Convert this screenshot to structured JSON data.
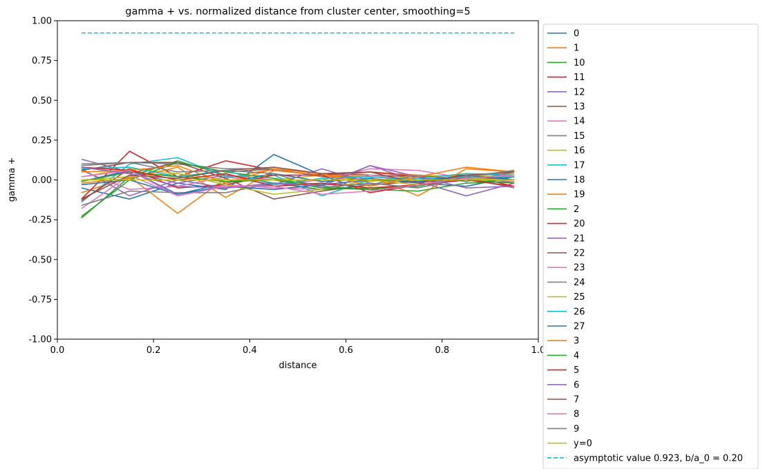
{
  "chart_data": {
    "type": "line",
    "title": "gamma + vs. normalized distance from cluster center, smoothing=5",
    "xlabel": "distance",
    "ylabel": "gamma +",
    "xlim": [
      0.0,
      1.0
    ],
    "ylim": [
      -1.0,
      1.0
    ],
    "xticks": [
      "0.0",
      "0.2",
      "0.4",
      "0.6",
      "0.8",
      "1.0"
    ],
    "yticks": [
      "1.00",
      "0.75",
      "0.50",
      "0.25",
      "0.00",
      "-0.25",
      "-0.50",
      "-0.75",
      "-1.00"
    ],
    "grid": false,
    "legend_placement": "outside-right",
    "x": [
      0.05,
      0.15,
      0.25,
      0.35,
      0.45,
      0.55,
      0.65,
      0.75,
      0.85,
      0.95
    ],
    "series": [
      {
        "name": "0",
        "color": "#1f77b4",
        "values": [
          -0.05,
          -0.12,
          -0.02,
          -0.06,
          0.16,
          0.03,
          0.0,
          0.01,
          0.0,
          0.02
        ]
      },
      {
        "name": "1",
        "color": "#ff7f0e",
        "values": [
          -0.08,
          0.02,
          -0.21,
          0.01,
          0.07,
          0.02,
          0.05,
          0.03,
          0.02,
          0.05
        ]
      },
      {
        "name": "10",
        "color": "#2ca02c",
        "values": [
          -0.24,
          0.02,
          0.12,
          0.03,
          -0.02,
          -0.06,
          -0.05,
          -0.04,
          0.03,
          0.0
        ]
      },
      {
        "name": "11",
        "color": "#d62728",
        "values": [
          -0.12,
          0.18,
          0.02,
          0.12,
          0.06,
          0.03,
          0.05,
          0.02,
          0.03,
          -0.04
        ]
      },
      {
        "name": "12",
        "color": "#9467bd",
        "values": [
          0.13,
          0.05,
          -0.02,
          0.03,
          0.0,
          -0.03,
          0.09,
          -0.01,
          -0.1,
          -0.02
        ]
      },
      {
        "name": "13",
        "color": "#8c564b",
        "values": [
          0.08,
          0.04,
          0.11,
          0.05,
          0.07,
          0.04,
          0.03,
          0.02,
          0.01,
          0.03
        ]
      },
      {
        "name": "14",
        "color": "#e377c2",
        "values": [
          0.06,
          -0.06,
          -0.04,
          0.02,
          -0.03,
          0.0,
          0.07,
          0.06,
          0.01,
          0.03
        ]
      },
      {
        "name": "15",
        "color": "#7f7f7f",
        "values": [
          0.09,
          0.11,
          0.1,
          0.07,
          0.07,
          0.02,
          0.02,
          0.0,
          0.01,
          0.06
        ]
      },
      {
        "name": "16",
        "color": "#bcbd22",
        "values": [
          0.02,
          0.07,
          0.04,
          0.0,
          0.0,
          0.03,
          -0.01,
          0.03,
          0.02,
          0.04
        ]
      },
      {
        "name": "17",
        "color": "#17becf",
        "values": [
          -0.14,
          0.1,
          0.14,
          0.02,
          0.03,
          -0.1,
          0.0,
          0.01,
          0.04,
          0.03
        ]
      },
      {
        "name": "18",
        "color": "#1f77b4",
        "values": [
          -0.01,
          0.06,
          -0.09,
          -0.02,
          0.04,
          -0.01,
          0.01,
          -0.02,
          -0.04,
          0.02
        ]
      },
      {
        "name": "19",
        "color": "#ff7f0e",
        "values": [
          -0.02,
          0.01,
          0.08,
          -0.11,
          0.06,
          0.03,
          0.02,
          -0.1,
          0.07,
          0.05
        ]
      },
      {
        "name": "2",
        "color": "#2ca02c",
        "values": [
          -0.23,
          0.0,
          0.11,
          0.05,
          0.01,
          -0.04,
          -0.06,
          -0.07,
          -0.02,
          -0.01
        ]
      },
      {
        "name": "20",
        "color": "#d62728",
        "values": [
          -0.13,
          0.07,
          -0.05,
          -0.03,
          0.03,
          0.03,
          -0.08,
          -0.03,
          0.02,
          0.0
        ]
      },
      {
        "name": "21",
        "color": "#9467bd",
        "values": [
          0.07,
          -0.1,
          0.0,
          -0.05,
          -0.03,
          0.07,
          -0.02,
          -0.05,
          0.01,
          -0.05
        ]
      },
      {
        "name": "22",
        "color": "#8c564b",
        "values": [
          0.06,
          0.11,
          0.11,
          0.01,
          -0.12,
          -0.07,
          -0.03,
          -0.01,
          0.0,
          0.02
        ]
      },
      {
        "name": "23",
        "color": "#e377c2",
        "values": [
          -0.18,
          0.03,
          -0.1,
          -0.03,
          -0.05,
          -0.06,
          0.03,
          0.0,
          0.01,
          -0.01
        ]
      },
      {
        "name": "24",
        "color": "#7f7f7f",
        "values": [
          -0.16,
          -0.07,
          -0.08,
          -0.08,
          -0.02,
          -0.03,
          -0.03,
          0.03,
          -0.01,
          0.05
        ]
      },
      {
        "name": "25",
        "color": "#bcbd22",
        "values": [
          0.0,
          0.02,
          0.04,
          -0.03,
          -0.09,
          -0.06,
          0.0,
          -0.03,
          0.01,
          0.0
        ]
      },
      {
        "name": "26",
        "color": "#17becf",
        "values": [
          0.07,
          0.08,
          0.02,
          0.06,
          -0.03,
          0.01,
          0.02,
          0.0,
          0.02,
          0.02
        ]
      },
      {
        "name": "27",
        "color": "#1f77b4",
        "values": [
          -0.03,
          0.0,
          -0.09,
          -0.04,
          -0.06,
          -0.03,
          0.0,
          -0.01,
          0.03,
          0.0
        ]
      },
      {
        "name": "3",
        "color": "#ff7f0e",
        "values": [
          0.05,
          0.06,
          0.09,
          -0.02,
          0.07,
          0.04,
          -0.04,
          0.02,
          0.08,
          0.05
        ]
      },
      {
        "name": "4",
        "color": "#2ca02c",
        "values": [
          -0.01,
          0.05,
          0.02,
          -0.01,
          0.0,
          -0.05,
          -0.06,
          -0.03,
          0.0,
          -0.02
        ]
      },
      {
        "name": "5",
        "color": "#d62728",
        "values": [
          0.08,
          0.06,
          0.0,
          0.04,
          -0.04,
          -0.02,
          -0.05,
          -0.03,
          0.0,
          -0.04
        ]
      },
      {
        "name": "6",
        "color": "#9467bd",
        "values": [
          0.08,
          0.04,
          -0.04,
          -0.05,
          -0.02,
          -0.04,
          0.09,
          0.02,
          -0.05,
          -0.04
        ]
      },
      {
        "name": "7",
        "color": "#8c564b",
        "values": [
          -0.12,
          0.03,
          0.01,
          0.06,
          0.08,
          0.04,
          0.05,
          -0.02,
          0.03,
          0.05
        ]
      },
      {
        "name": "8",
        "color": "#e377c2",
        "values": [
          0.02,
          0.06,
          -0.1,
          -0.04,
          -0.04,
          -0.09,
          -0.07,
          -0.03,
          0.01,
          0.03
        ]
      },
      {
        "name": "9",
        "color": "#7f7f7f",
        "values": [
          0.1,
          0.11,
          0.05,
          0.06,
          0.04,
          -0.05,
          -0.02,
          -0.05,
          0.02,
          0.06
        ]
      },
      {
        "name": "y=0",
        "color": "#bcbd22",
        "values": [
          0,
          0,
          0,
          0,
          0,
          0,
          0,
          0,
          0,
          0
        ]
      }
    ],
    "reference_line": {
      "name": "asymptotic value 0.923, b/a_0 = 0.20",
      "color": "#17becf",
      "dash": "dashed",
      "y": 0.923,
      "x_start": 0.05,
      "x_end": 0.95
    }
  }
}
